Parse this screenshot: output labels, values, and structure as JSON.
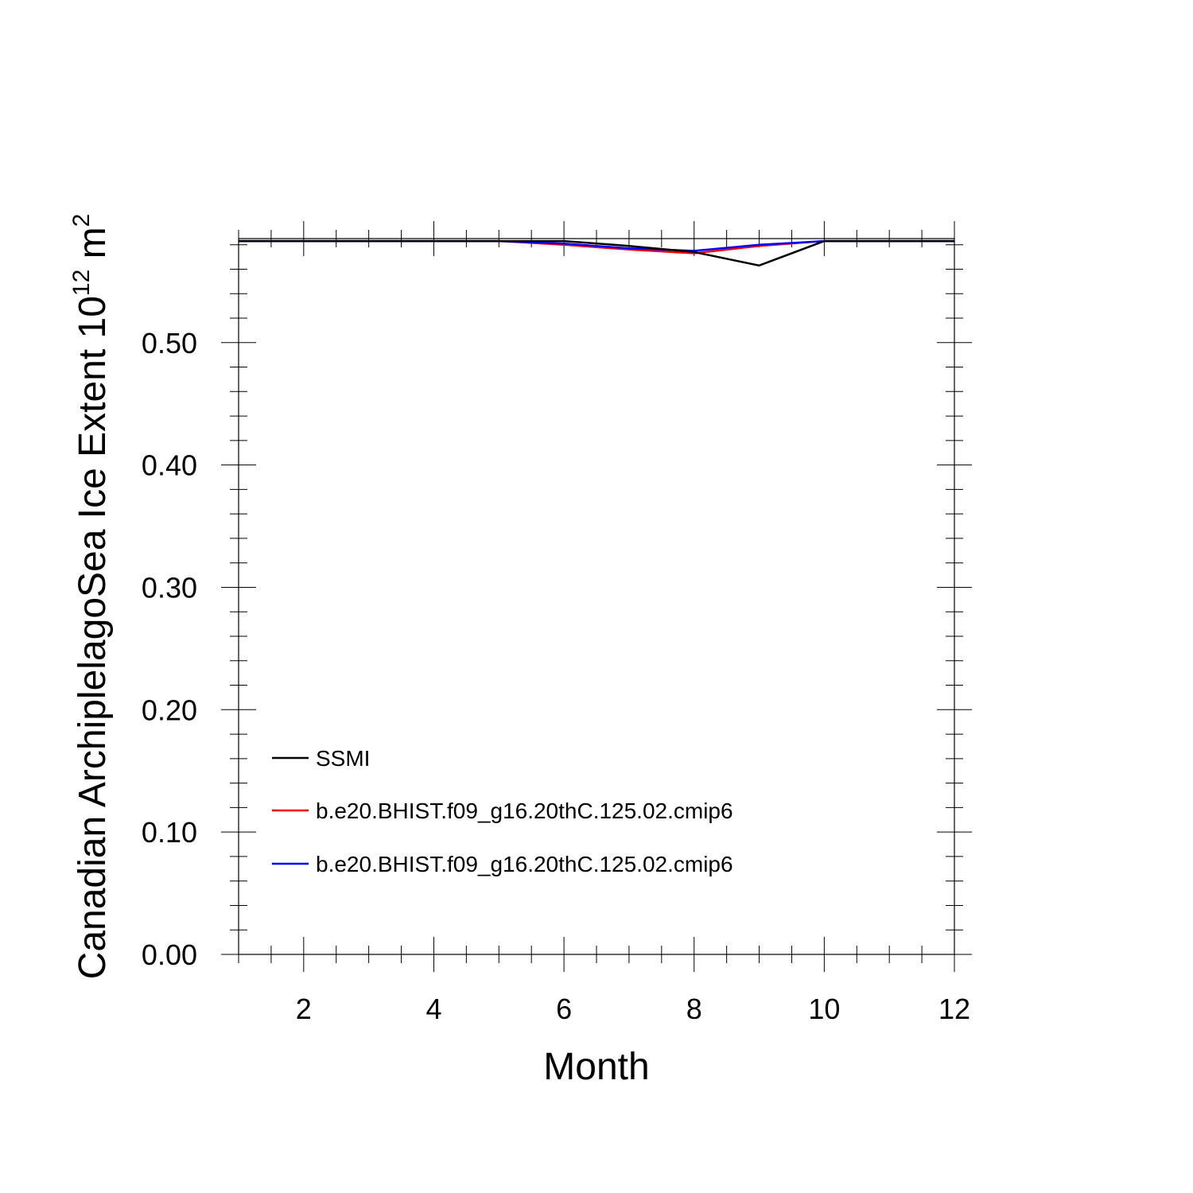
{
  "chart_data": {
    "type": "line",
    "title": "",
    "xlabel": "Month",
    "ylabel": "Canadian ArchiplelagoSea Ice Extent 10",
    "ylabel_exponent": "12",
    "ylabel_unit": " m",
    "ylabel_unit_exponent": "2",
    "xlim": [
      1,
      12
    ],
    "ylim": [
      0,
      0.585
    ],
    "x_ticks": [
      2,
      4,
      6,
      8,
      10,
      12
    ],
    "x_tick_labels": [
      "2",
      "4",
      "6",
      "8",
      "10",
      "12"
    ],
    "y_ticks": [
      0.0,
      0.1,
      0.2,
      0.3,
      0.4,
      0.5
    ],
    "y_tick_labels": [
      "0.00",
      "0.10",
      "0.20",
      "0.30",
      "0.40",
      "0.50"
    ],
    "grid": false,
    "legend_position": "bottom-left",
    "x": [
      1,
      2,
      3,
      4,
      5,
      6,
      7,
      8,
      9,
      10,
      11,
      12
    ],
    "series": [
      {
        "name": "SSMI",
        "color": "#000000",
        "values": [
          0.583,
          0.583,
          0.583,
          0.583,
          0.583,
          0.583,
          0.579,
          0.574,
          0.563,
          0.583,
          0.583,
          0.583
        ]
      },
      {
        "name": "b.e20.BHIST.f09_g16.20thC.125.02.cmip6",
        "color": "#ff0000",
        "values": [
          0.583,
          0.583,
          0.583,
          0.583,
          0.583,
          0.58,
          0.576,
          0.573,
          0.579,
          0.583,
          0.583,
          0.583
        ]
      },
      {
        "name": "b.e20.BHIST.f09_g16.20thC.125.02.cmip6",
        "color": "#0000ff",
        "values": [
          0.583,
          0.583,
          0.583,
          0.583,
          0.583,
          0.581,
          0.577,
          0.575,
          0.58,
          0.583,
          0.583,
          0.583
        ]
      }
    ]
  }
}
